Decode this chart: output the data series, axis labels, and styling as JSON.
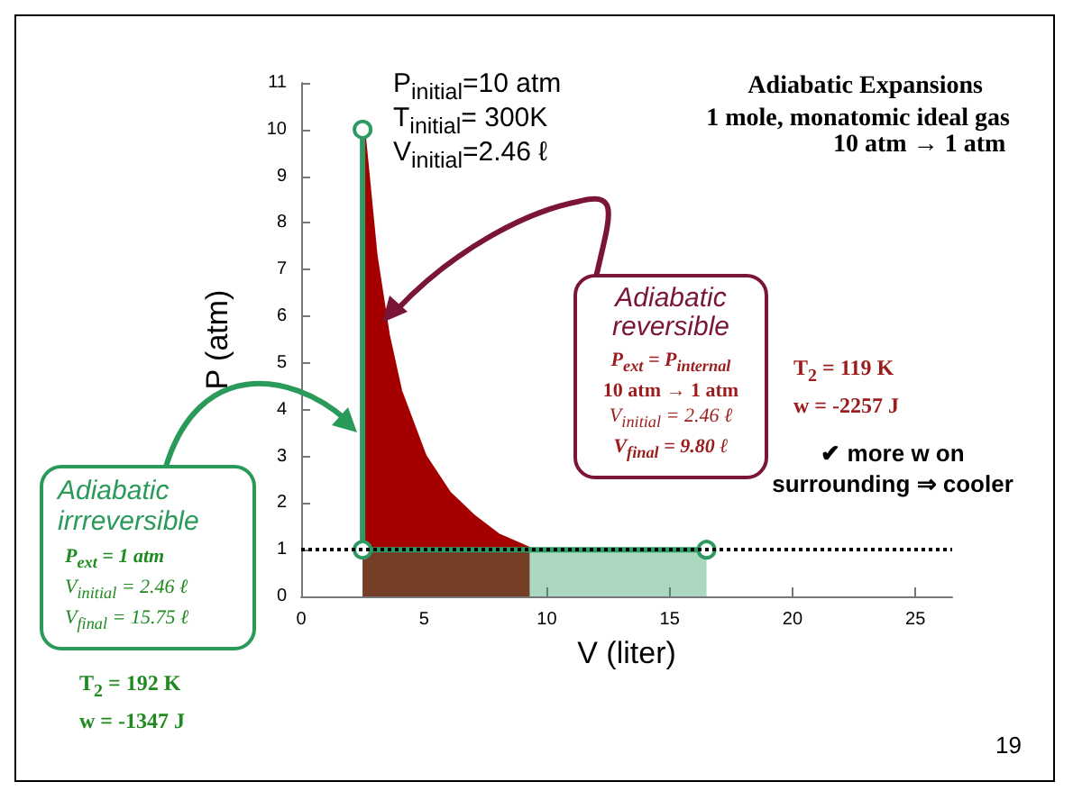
{
  "chart_data": {
    "type": "area",
    "title": "Adiabatic Expansions",
    "subtitle": "1 mole, monatomic ideal gas",
    "xlabel": "V (liter)",
    "ylabel": "P (atm)",
    "annotations": [
      "10 atm → 1 atm",
      "P$_{initial}$=10 atm",
      "T$_{initial}$= 300K",
      "V$_{initial}$=2.46 ℓ",
      "Adiabatic reversible",
      "P$_{ext}$ = P$_{internal}$",
      "10 atm → 1 atm",
      "V$_{initial}$ = 2.46 ℓ",
      "V$_{final}$ = 9.80 ℓ",
      "T$_{2}$ = 119 K",
      "w = -2257 J",
      "✔ more w on surrounding ⇒ cooler",
      "Adiabatic irrreversible",
      "P$_{ext}$ = 1 atm",
      "V$_{initial}$ = 2.46 ℓ",
      "V$_{final}$ = 15.75 ℓ",
      "T$_{2}$ = 192 K",
      "w = -1347 J",
      "19"
    ],
    "series": [
      {
        "color": "#a50000",
        "x": [
          2.5,
          3,
          3.5,
          4,
          5,
          6,
          7,
          8,
          9.3
        ],
        "values": [
          10,
          7.3,
          5.6,
          4.4,
          3,
          2.2,
          1.7,
          1.3,
          1
        ],
        "marker": "none"
      },
      {
        "color": "#2e9a62",
        "x": [
          2.5,
          2.5,
          16.5
        ],
        "values": [
          10,
          1,
          1
        ],
        "marker": "circle"
      }
    ],
    "xlim": [
      0,
      26.5
    ],
    "xticks": [
      0,
      5,
      10,
      15,
      20,
      25
    ],
    "ylim": [
      0,
      11
    ],
    "yticks": [
      0,
      1,
      2,
      3,
      4,
      5,
      6,
      7,
      8,
      9,
      10,
      11
    ],
    "ref_lines": [
      {
        "axis": "y",
        "value": 1,
        "color": "#000000",
        "line_style": "dotted"
      }
    ],
    "grid": false
  }
}
